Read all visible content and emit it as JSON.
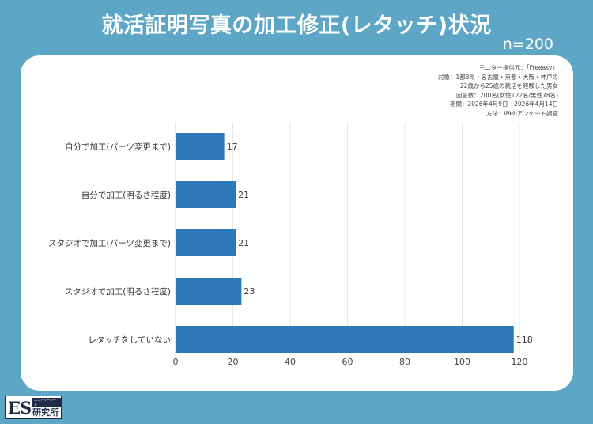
{
  "title": "就活証明写真の加工修正(レタッチ)状況",
  "n_label": "n=200",
  "meta_lines": [
    "モニター提供元：「Freeasy」",
    "対象：1都3県・名古屋・京都・大阪・神戸の",
    "22歳から25歳の就活を経験した男女",
    "回答数：200名(女性122名/男性78名)",
    "期間：2026年4月9日　2026年4月14日",
    "方法：Webアンケート調査"
  ],
  "logo": {
    "main": "ES",
    "tag": "エントリーシート",
    "text": "研究所"
  },
  "colors": {
    "bar": "#2e77b8",
    "background": "#5ea6c6",
    "grid": "#e6e6e6"
  },
  "chart_data": {
    "type": "bar",
    "orientation": "horizontal",
    "title": "",
    "xlabel": "",
    "ylabel": "",
    "categories": [
      "自分で加工(パーツ変更まで)",
      "自分で加工(明るさ程度)",
      "スタジオで加工(パーツ変更まで)",
      "スタジオで加工(明るさ程度)",
      "レタッチをしていない"
    ],
    "values": [
      17,
      21,
      21,
      23,
      118
    ],
    "xlim": [
      0,
      120
    ],
    "xticks": [
      0,
      20,
      40,
      60,
      80,
      100,
      120
    ],
    "grid": true,
    "legend": "none"
  }
}
